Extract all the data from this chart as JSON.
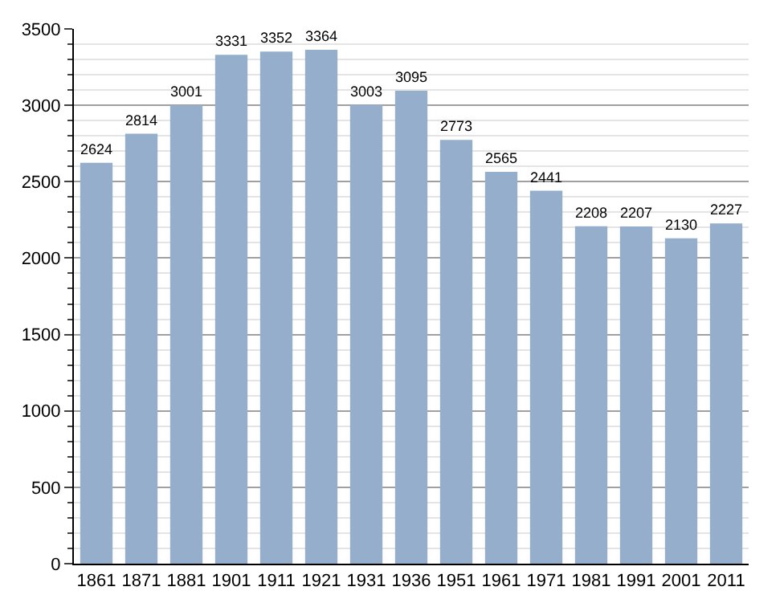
{
  "chart_data": {
    "type": "bar",
    "categories": [
      "1861",
      "1871",
      "1881",
      "1901",
      "1911",
      "1921",
      "1931",
      "1936",
      "1951",
      "1961",
      "1971",
      "1981",
      "1991",
      "2001",
      "2011"
    ],
    "values": [
      2624,
      2814,
      3001,
      3331,
      3352,
      3364,
      3003,
      3095,
      2773,
      2565,
      2441,
      2208,
      2207,
      2130,
      2227
    ],
    "color": "#95aecb",
    "data_labels": true,
    "grid": "y",
    "ylim": [
      0,
      3500
    ],
    "yticks": [
      0,
      {
        "value": 100,
        "label": null
      },
      {
        "value": 200,
        "label": null
      },
      {
        "value": 300,
        "label": null
      },
      {
        "value": 400,
        "label": null
      },
      500,
      {
        "value": 600,
        "label": null
      },
      {
        "value": 700,
        "label": null
      },
      {
        "value": 800,
        "label": null
      },
      {
        "value": 900,
        "label": null
      },
      1000,
      {
        "value": 1100,
        "label": null
      },
      {
        "value": 1200,
        "label": null
      },
      {
        "value": 1300,
        "label": null
      },
      {
        "value": 1400,
        "label": null
      },
      1500,
      {
        "value": 1600,
        "label": null
      },
      {
        "value": 1700,
        "label": null
      },
      {
        "value": 1800,
        "label": null
      },
      {
        "value": 1900,
        "label": null
      },
      2000,
      {
        "value": 2100,
        "label": null
      },
      {
        "value": 2200,
        "label": null
      },
      {
        "value": 2300,
        "label": null
      },
      {
        "value": 2400,
        "label": null
      },
      2500,
      {
        "value": 2600,
        "label": null
      },
      {
        "value": 2700,
        "label": null
      },
      {
        "value": 2800,
        "label": null
      },
      {
        "value": 2900,
        "label": null
      },
      3000,
      {
        "value": 3100,
        "label": null
      },
      {
        "value": 3200,
        "label": null
      },
      {
        "value": 3300,
        "label": null
      },
      {
        "value": 3400,
        "label": null
      },
      3500
    ]
  }
}
